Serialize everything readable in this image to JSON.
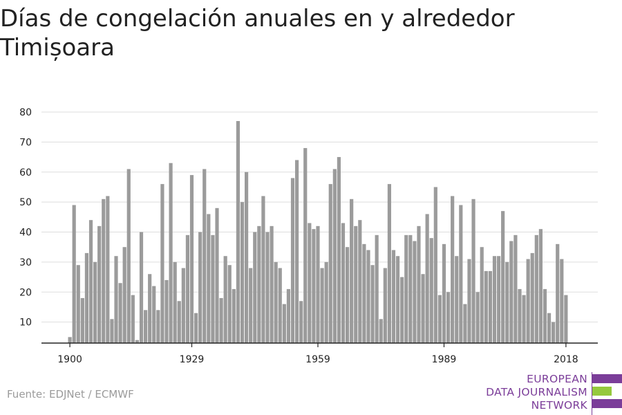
{
  "title": "Días de congelación anuales en y alrededor Timișoara",
  "source": "Fuente: EDJNet / ECMWF",
  "logo": {
    "lines": [
      "EUROPEAN",
      "DATA JOURNALISM",
      "NETWORK"
    ],
    "colors": {
      "purple": "#7b3d99",
      "green": "#95c93d"
    }
  },
  "colors": {
    "bar": "#9b9b9b",
    "grid": "#dddddd",
    "axis": "#222222",
    "text": "#222222"
  },
  "chart_data": {
    "type": "bar",
    "x": [
      1900,
      1901,
      1902,
      1903,
      1904,
      1905,
      1906,
      1907,
      1908,
      1909,
      1910,
      1911,
      1912,
      1913,
      1914,
      1915,
      1916,
      1917,
      1918,
      1919,
      1920,
      1921,
      1922,
      1923,
      1924,
      1925,
      1926,
      1927,
      1928,
      1929,
      1930,
      1931,
      1932,
      1933,
      1934,
      1935,
      1936,
      1937,
      1938,
      1939,
      1940,
      1941,
      1942,
      1943,
      1944,
      1945,
      1946,
      1947,
      1948,
      1949,
      1950,
      1951,
      1952,
      1953,
      1954,
      1955,
      1956,
      1957,
      1958,
      1959,
      1960,
      1961,
      1962,
      1963,
      1964,
      1965,
      1966,
      1967,
      1968,
      1969,
      1970,
      1971,
      1972,
      1973,
      1974,
      1975,
      1976,
      1977,
      1978,
      1979,
      1980,
      1981,
      1982,
      1983,
      1984,
      1985,
      1986,
      1987,
      1988,
      1989,
      1990,
      1991,
      1992,
      1993,
      1994,
      1995,
      1996,
      1997,
      1998,
      1999,
      2000,
      2001,
      2002,
      2003,
      2004,
      2005,
      2006,
      2007,
      2008,
      2009,
      2010,
      2011,
      2012,
      2013,
      2014,
      2015,
      2016,
      2017,
      2018
    ],
    "values": [
      5,
      49,
      29,
      18,
      33,
      44,
      30,
      42,
      51,
      52,
      11,
      32,
      23,
      35,
      61,
      19,
      4,
      40,
      14,
      26,
      22,
      14,
      56,
      24,
      63,
      30,
      17,
      28,
      39,
      59,
      13,
      40,
      61,
      46,
      39,
      48,
      18,
      32,
      29,
      21,
      77,
      50,
      60,
      28,
      40,
      42,
      52,
      40,
      42,
      30,
      28,
      16,
      21,
      58,
      64,
      17,
      68,
      43,
      41,
      42,
      28,
      30,
      56,
      61,
      65,
      43,
      35,
      51,
      42,
      44,
      36,
      34,
      29,
      39,
      11,
      28,
      56,
      34,
      32,
      25,
      39,
      39,
      37,
      42,
      26,
      46,
      38,
      55,
      19,
      36,
      20,
      52,
      32,
      49,
      16,
      31,
      51,
      20,
      35,
      27,
      27,
      32,
      32,
      47,
      30,
      37,
      39,
      21,
      19,
      31,
      33,
      39,
      41,
      21,
      13,
      10,
      36,
      31,
      19
    ],
    "xticks": [
      "1900",
      "1929",
      "1959",
      "1989",
      "2018"
    ],
    "yticks": [
      "10",
      "20",
      "30",
      "40",
      "50",
      "60",
      "70",
      "80"
    ],
    "ylim": [
      3,
      80
    ],
    "xlim": [
      1900,
      2018
    ],
    "grid": true
  }
}
